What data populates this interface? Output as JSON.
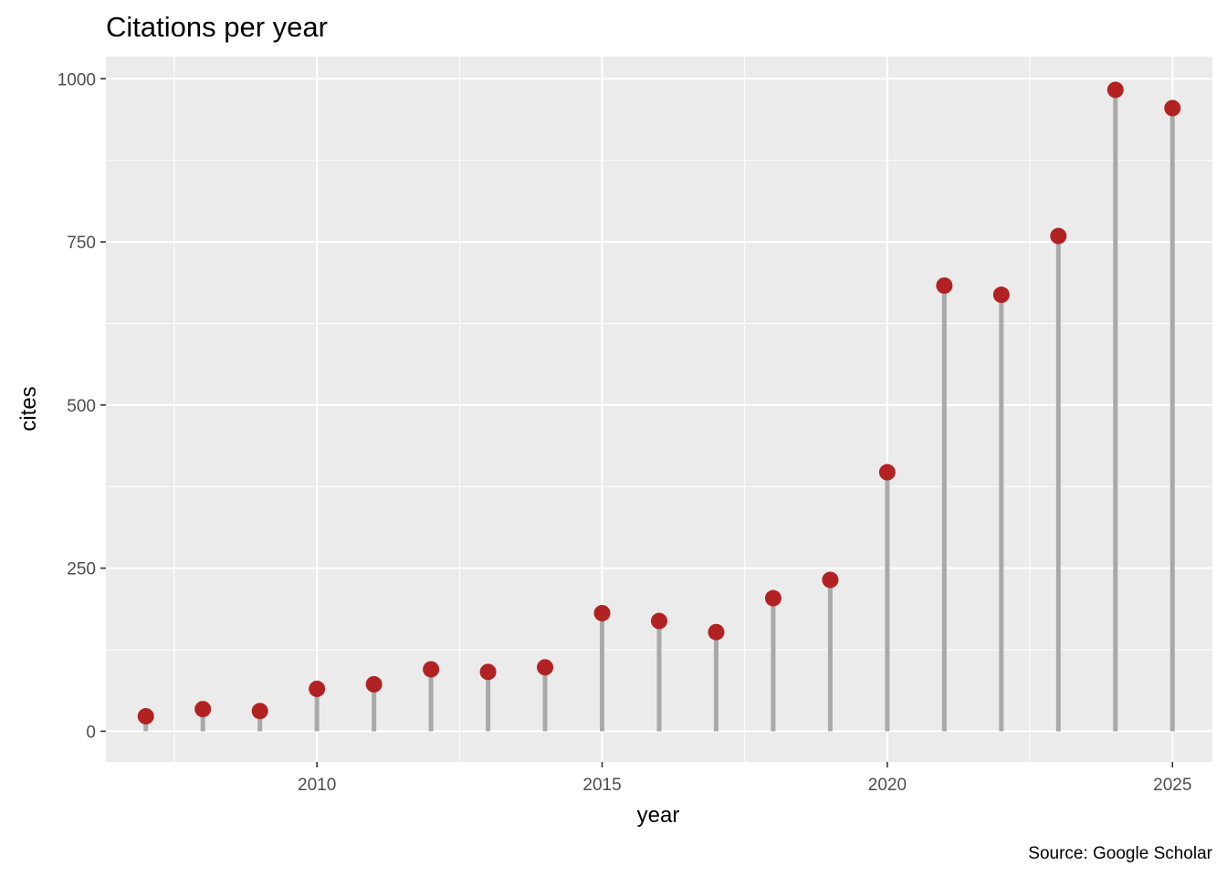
{
  "chart_data": {
    "type": "lollipop",
    "title": "Citations per year",
    "xlabel": "year",
    "ylabel": "cites",
    "caption": "Source: Google Scholar",
    "x_ticks": [
      2010,
      2015,
      2020,
      2025
    ],
    "y_ticks": [
      0,
      250,
      500,
      750,
      1000
    ],
    "xlim": [
      2006.3,
      2025.7
    ],
    "ylim": [
      -47,
      1034
    ],
    "grid": true,
    "panel_background": "#ebebeb",
    "stem_color": "#a9a9a9",
    "point_color": "#b22222",
    "points": [
      {
        "year": 2007,
        "cites": 23
      },
      {
        "year": 2008,
        "cites": 34
      },
      {
        "year": 2009,
        "cites": 31
      },
      {
        "year": 2010,
        "cites": 65
      },
      {
        "year": 2011,
        "cites": 72
      },
      {
        "year": 2012,
        "cites": 95
      },
      {
        "year": 2013,
        "cites": 91
      },
      {
        "year": 2014,
        "cites": 98
      },
      {
        "year": 2015,
        "cites": 181
      },
      {
        "year": 2016,
        "cites": 169
      },
      {
        "year": 2017,
        "cites": 152
      },
      {
        "year": 2018,
        "cites": 204
      },
      {
        "year": 2019,
        "cites": 232
      },
      {
        "year": 2020,
        "cites": 397
      },
      {
        "year": 2021,
        "cites": 683
      },
      {
        "year": 2022,
        "cites": 669
      },
      {
        "year": 2023,
        "cites": 759
      },
      {
        "year": 2024,
        "cites": 983
      },
      {
        "year": 2025,
        "cites": 955
      }
    ]
  }
}
